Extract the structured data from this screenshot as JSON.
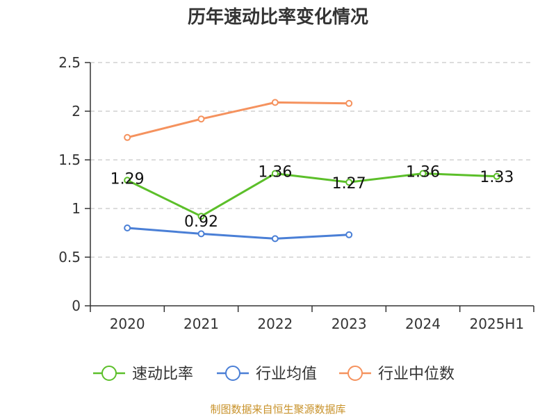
{
  "chart_data": {
    "type": "line",
    "title": "历年速动比率变化情况",
    "categories": [
      "2020",
      "2021",
      "2022",
      "2023",
      "2024",
      "2025H1"
    ],
    "ylim": [
      0,
      2.5
    ],
    "yticks": [
      "0",
      "0.5",
      "1",
      "1.5",
      "2",
      "2.5"
    ],
    "grid": true,
    "legend_position": "bottom",
    "series": [
      {
        "name": "速动比率",
        "color": "#5cbf2a",
        "values": [
          1.29,
          0.92,
          1.36,
          1.27,
          1.36,
          1.33
        ],
        "labels": [
          "1.29",
          "0.92",
          "1.36",
          "1.27",
          "1.36",
          "1.33"
        ]
      },
      {
        "name": "行业均值",
        "color": "#4a7fd6",
        "values": [
          0.8,
          0.74,
          0.69,
          0.73,
          null,
          null
        ]
      },
      {
        "name": "行业中位数",
        "color": "#f5925e",
        "values": [
          1.73,
          1.92,
          2.09,
          2.08,
          null,
          null
        ]
      }
    ]
  },
  "source_text": "制图数据来自恒生聚源数据库"
}
